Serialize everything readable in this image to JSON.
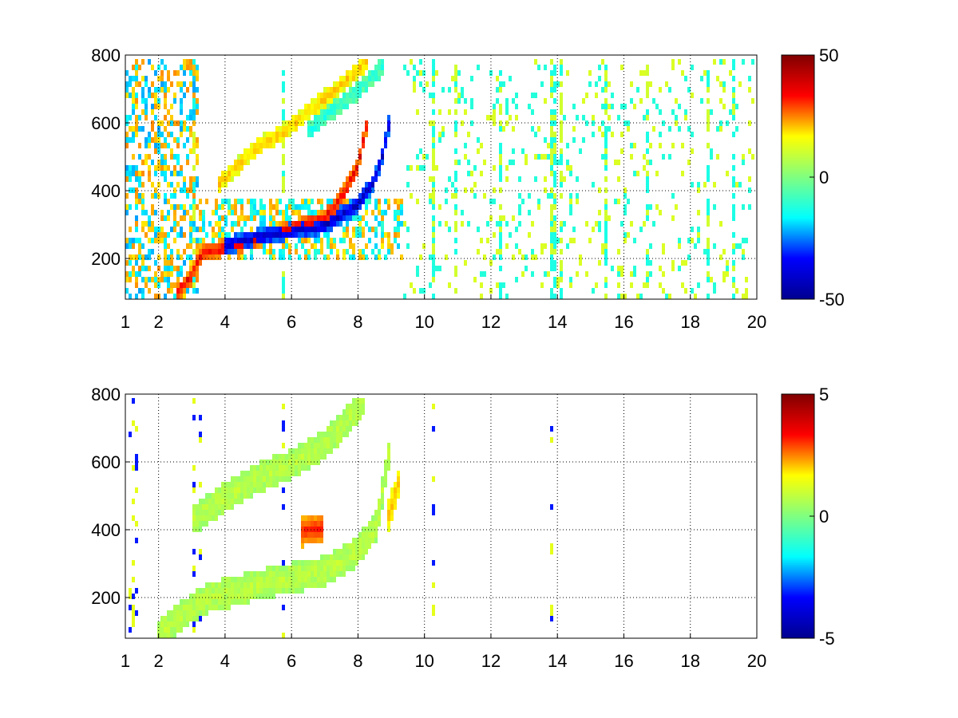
{
  "figure": {
    "background": "#ffffff",
    "colormap": "jet",
    "jet_stops": [
      "#00008f",
      "#0000ff",
      "#00ffff",
      "#80ff80",
      "#ffff00",
      "#ff0000",
      "#800000"
    ]
  },
  "chart_data": [
    {
      "type": "heatmap",
      "title": "",
      "xlabel": "",
      "ylabel": "",
      "xlim": [
        1,
        20
      ],
      "ylim": [
        80,
        800
      ],
      "x_ticks": [
        1,
        2,
        4,
        6,
        8,
        10,
        12,
        14,
        16,
        18,
        20
      ],
      "y_ticks": [
        200,
        400,
        600,
        800
      ],
      "grid": true,
      "grid_style": "dotted",
      "colorbar": {
        "position": "right",
        "min": -50,
        "max": 50,
        "ticks": [
          50,
          0,
          -50
        ]
      },
      "features": [
        {
          "name": "",
          "curve": [
            [
              2.5,
              90
            ],
            [
              3.0,
              150
            ],
            [
              3.3,
              215
            ],
            [
              4.0,
              235
            ],
            [
              5.0,
              260
            ],
            [
              6.0,
              290
            ],
            [
              7.0,
              320
            ],
            [
              7.5,
              380
            ],
            [
              8.0,
              470
            ],
            [
              8.3,
              600
            ]
          ],
          "value": 40
        },
        {
          "name": "",
          "curve": [
            [
              4.0,
              240
            ],
            [
              5.0,
              265
            ],
            [
              6.0,
              285
            ],
            [
              7.0,
              300
            ],
            [
              8.0,
              360
            ],
            [
              8.5,
              430
            ],
            [
              8.8,
              520
            ],
            [
              9.0,
              620
            ]
          ],
          "value": -45
        },
        {
          "name": "",
          "curve": [
            [
              3.8,
              420
            ],
            [
              4.5,
              490
            ],
            [
              5.0,
              540
            ],
            [
              5.8,
              580
            ],
            [
              6.5,
              640
            ],
            [
              7.5,
              720
            ],
            [
              8.3,
              790
            ]
          ],
          "value": 18
        },
        {
          "name": "",
          "curve": [
            [
              6.5,
              580
            ],
            [
              7.2,
              640
            ],
            [
              8.0,
              700
            ],
            [
              8.8,
              780
            ]
          ],
          "value": -8
        }
      ],
      "low_x_noise_band": [
        1,
        3.2
      ],
      "vertical_streaks_x": [
        3.1,
        5.8,
        10.3,
        11.0,
        12.3,
        13.9,
        14.0,
        14.2,
        15.5,
        16.8,
        18.6,
        19.4
      ]
    },
    {
      "type": "heatmap",
      "title": "",
      "xlabel": "",
      "ylabel": "",
      "xlim": [
        1,
        20
      ],
      "ylim": [
        80,
        800
      ],
      "x_ticks": [
        1,
        2,
        4,
        6,
        8,
        10,
        12,
        14,
        16,
        18,
        20
      ],
      "y_ticks": [
        200,
        400,
        600,
        800
      ],
      "grid": true,
      "grid_style": "dotted",
      "colorbar": {
        "position": "right",
        "min": -5,
        "max": 5,
        "ticks": [
          5,
          0,
          -5
        ]
      },
      "features": [
        {
          "name": "",
          "curve": [
            [
              2.0,
              90
            ],
            [
              3.0,
              170
            ],
            [
              3.5,
              200
            ],
            [
              5.0,
              240
            ],
            [
              6.0,
              260
            ],
            [
              7.0,
              280
            ],
            [
              8.0,
              340
            ],
            [
              8.6,
              420
            ],
            [
              8.8,
              540
            ],
            [
              9.0,
              650
            ]
          ],
          "value": 0.6
        },
        {
          "name": "",
          "curve": [
            [
              3.0,
              430
            ],
            [
              4.0,
              500
            ],
            [
              5.0,
              560
            ],
            [
              6.0,
              600
            ],
            [
              7.0,
              660
            ],
            [
              7.6,
              720
            ],
            [
              8.2,
              790
            ]
          ],
          "value": 0.6
        },
        {
          "name": "",
          "curve": [
            [
              6.3,
              400
            ],
            [
              7.0,
              410
            ]
          ],
          "value": 3.5
        },
        {
          "name": "",
          "curve": [
            [
              8.9,
              430
            ],
            [
              9.3,
              560
            ]
          ],
          "value": 2.0
        }
      ],
      "vertical_streaks_x": [
        1.2,
        1.35,
        3.1,
        3.3,
        5.8,
        10.3,
        13.9
      ]
    }
  ]
}
